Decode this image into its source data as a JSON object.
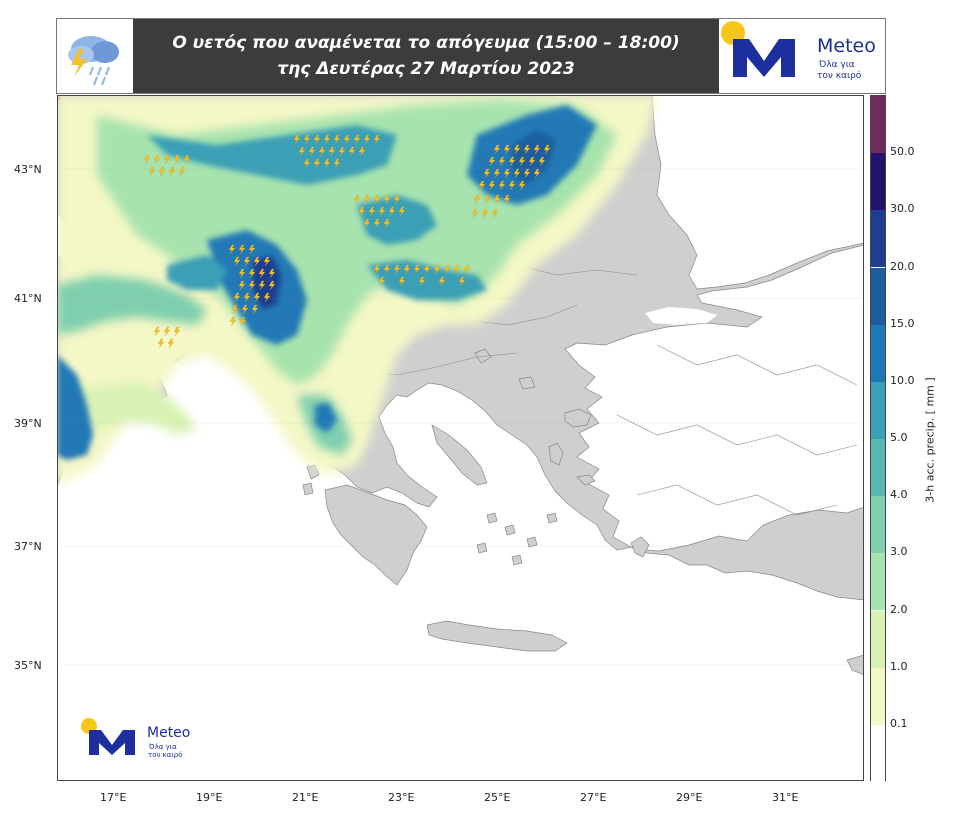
{
  "header": {
    "title_line1": "Ο υετός που αναμένεται το απόγευμα (15:00 – 18:00)",
    "title_line2": "της Δευτέρας 27 Μαρτίου 2023",
    "brand": "Meteo",
    "tagline_line1": "Όλα για",
    "tagline_line2": "τον καιρό"
  },
  "map": {
    "lat_labels": [
      "43°N",
      "41°N",
      "39°N",
      "37°N",
      "35°N"
    ],
    "lon_labels": [
      "17°E",
      "19°E",
      "21°E",
      "23°E",
      "25°E",
      "27°E",
      "29°E",
      "31°E"
    ],
    "sea_color": "#ffffff",
    "land_color": "#cfcfcf",
    "lightning_icon": "lightning-bolt-icon"
  },
  "colorbar": {
    "title": "3-h acc. precip. [ mm ]",
    "levels": [
      "0.1",
      "1.0",
      "2.0",
      "3.0",
      "4.0",
      "5.0",
      "10.0",
      "15.0",
      "20.0",
      "30.0",
      "50.0"
    ],
    "colors": [
      "#ffffff",
      "#f4f7c6",
      "#d8f2b4",
      "#a7e3ae",
      "#7fcfae",
      "#59b9ae",
      "#3b9fb5",
      "#2079b6",
      "#1b5e9e",
      "#1f3d93",
      "#24116a",
      "#6c2c5e"
    ]
  },
  "watermark": {
    "brand": "Meteo",
    "tagline_line1": "Όλα για",
    "tagline_line2": "τον καιρό"
  }
}
